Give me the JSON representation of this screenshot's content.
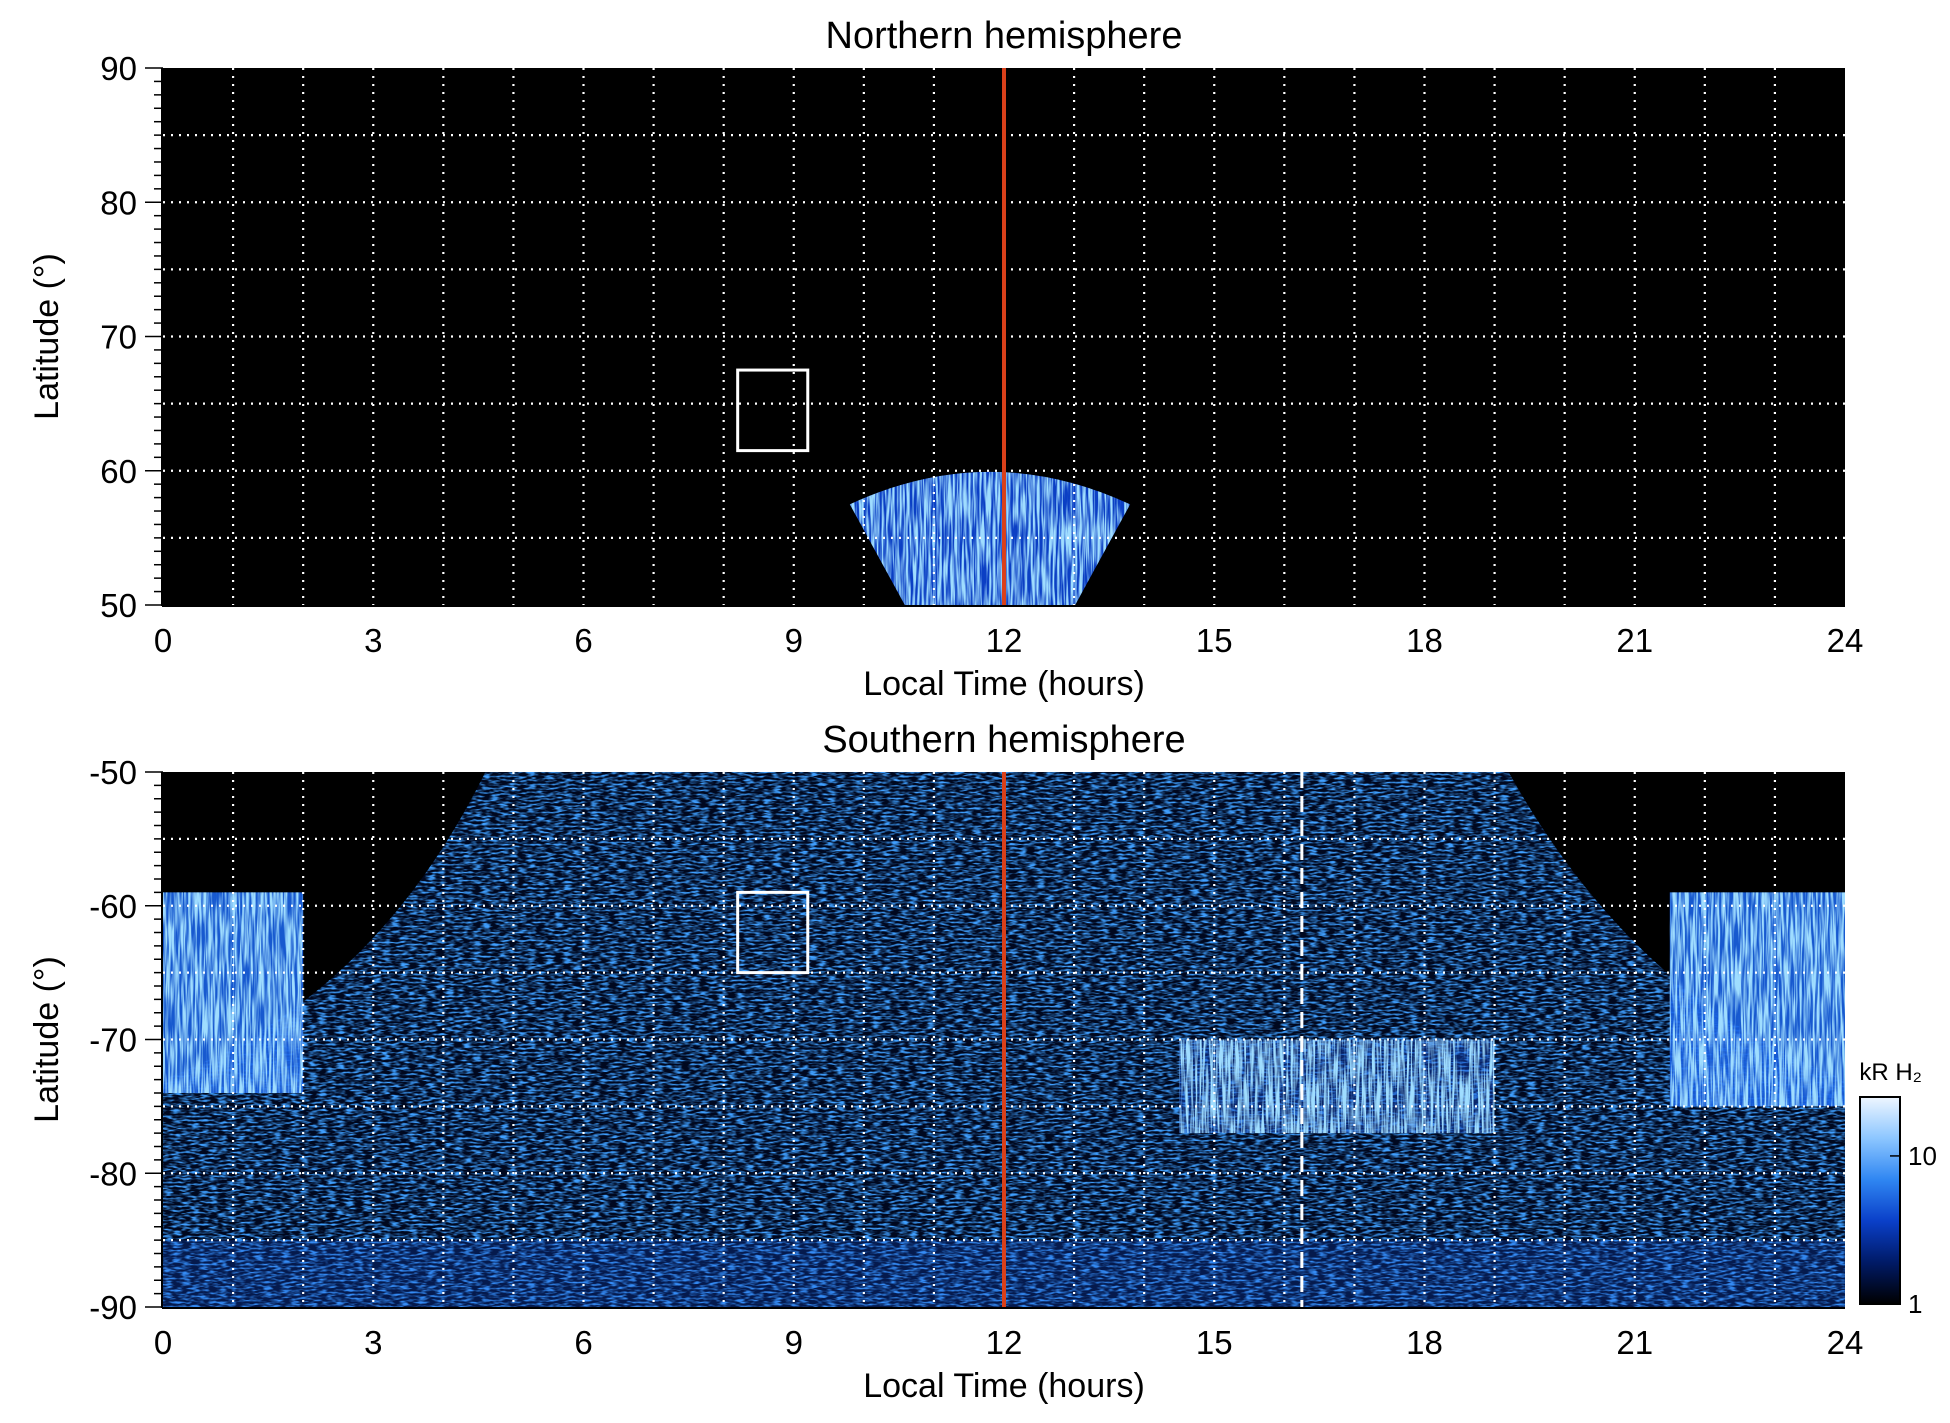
{
  "chart_data": [
    {
      "type": "heatmap",
      "title": "Northern hemisphere",
      "xlabel": "Local Time (hours)",
      "ylabel": "Latitude (°)",
      "xlim": [
        0,
        24
      ],
      "ylim": [
        50,
        90
      ],
      "xticks": [
        0,
        3,
        6,
        9,
        12,
        15,
        18,
        21,
        24
      ],
      "yticks": [
        50,
        60,
        70,
        80,
        90
      ],
      "grid": true,
      "grid_x_step": 1,
      "grid_y_step": 5,
      "background": "#000000",
      "noon_line": {
        "x": 12,
        "color": "#d9401a"
      },
      "box": {
        "x": [
          8.2,
          9.2
        ],
        "y": [
          61.5,
          67.5
        ],
        "color": "#ffffff"
      },
      "emission": [
        {
          "region": "dayside-fan",
          "x": [
            9.8,
            13.8
          ],
          "lat_edge": 61,
          "lat_min": 50,
          "intensity_kR": 10
        }
      ]
    },
    {
      "type": "heatmap",
      "title": "Southern hemisphere",
      "xlabel": "Local Time (hours)",
      "ylabel": "Latitude (°)",
      "xlim": [
        0,
        24
      ],
      "ylim": [
        -90,
        -50
      ],
      "xticks": [
        0,
        3,
        6,
        9,
        12,
        15,
        18,
        21,
        24
      ],
      "yticks": [
        -90,
        -80,
        -70,
        -60,
        -50
      ],
      "grid": true,
      "grid_x_step": 1,
      "grid_y_step": 5,
      "background": "#000000",
      "noon_line": {
        "x": 12,
        "color": "#d9401a"
      },
      "dashed_line": {
        "x": 16.25,
        "color": "#ffffff"
      },
      "box": {
        "x": [
          8.2,
          9.2
        ],
        "y": [
          -65,
          -59
        ],
        "color": "#ffffff"
      },
      "coverage": {
        "x_at_top": [
          4.6,
          19.2
        ],
        "x_at_bottom": [
          0,
          24
        ],
        "curve_bottom_lat": -73
      },
      "emission": [
        {
          "region": "dawn-arc",
          "x": [
            0,
            2
          ],
          "lat": [
            -74,
            -59
          ],
          "intensity_kR": 15
        },
        {
          "region": "dusk-arc",
          "x": [
            21.5,
            24
          ],
          "lat": [
            -75,
            -59
          ],
          "intensity_kR": 15
        },
        {
          "region": "afternoon-patch",
          "x": [
            14.5,
            19
          ],
          "lat": [
            -77,
            -70
          ],
          "intensity_kR": 5
        }
      ]
    }
  ],
  "colorbar": {
    "label": "kR H₂",
    "ticks": [
      1,
      10
    ],
    "range": [
      1,
      25
    ],
    "scale": "log",
    "colors": [
      "#000000",
      "#001a66",
      "#0a3fc8",
      "#2f86f2",
      "#8cc6ff",
      "#eef6ff"
    ]
  }
}
